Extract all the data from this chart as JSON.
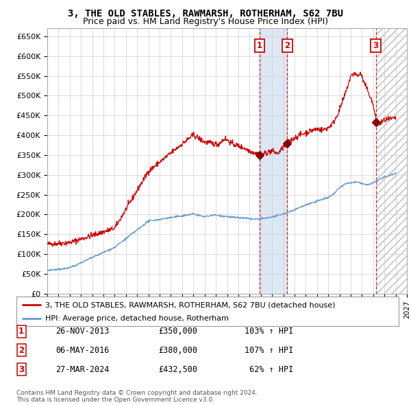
{
  "title1": "3, THE OLD STABLES, RAWMARSH, ROTHERHAM, S62 7BU",
  "title2": "Price paid vs. HM Land Registry's House Price Index (HPI)",
  "xlim": [
    1995.0,
    2027.0
  ],
  "ylim": [
    0,
    670000
  ],
  "yticks": [
    0,
    50000,
    100000,
    150000,
    200000,
    250000,
    300000,
    350000,
    400000,
    450000,
    500000,
    550000,
    600000,
    650000
  ],
  "ytick_labels": [
    "£0",
    "£50K",
    "£100K",
    "£150K",
    "£200K",
    "£250K",
    "£300K",
    "£350K",
    "£400K",
    "£450K",
    "£500K",
    "£550K",
    "£600K",
    "£650K"
  ],
  "legend_entries": [
    "3, THE OLD STABLES, RAWMARSH, ROTHERHAM, S62 7BU (detached house)",
    "HPI: Average price, detached house, Rotherham"
  ],
  "sale_points": [
    {
      "date_num": 2013.9,
      "price": 350000,
      "label": "1"
    },
    {
      "date_num": 2016.35,
      "price": 380000,
      "label": "2"
    },
    {
      "date_num": 2024.23,
      "price": 432500,
      "label": "3"
    }
  ],
  "table_rows": [
    {
      "num": "1",
      "date": "26-NOV-2013",
      "price": "£350,000",
      "pct": "103% ↑ HPI"
    },
    {
      "num": "2",
      "date": "06-MAY-2016",
      "price": "£380,000",
      "pct": "107% ↑ HPI"
    },
    {
      "num": "3",
      "date": "27-MAR-2024",
      "price": "£432,500",
      "pct": " 62% ↑ HPI"
    }
  ],
  "footer": "Contains HM Land Registry data © Crown copyright and database right 2024.\nThis data is licensed under the Open Government Licence v3.0.",
  "red_color": "#cc0000",
  "blue_color": "#6699cc",
  "bg_color": "#ffffff",
  "grid_color": "#cccccc",
  "shade_color": "#dde8f5",
  "hatch_color": "#bbbbbb",
  "title_fontsize": 10,
  "subtitle_fontsize": 9,
  "tick_fontsize": 8,
  "legend_fontsize": 8,
  "table_fontsize": 8.5,
  "footer_fontsize": 6.5
}
